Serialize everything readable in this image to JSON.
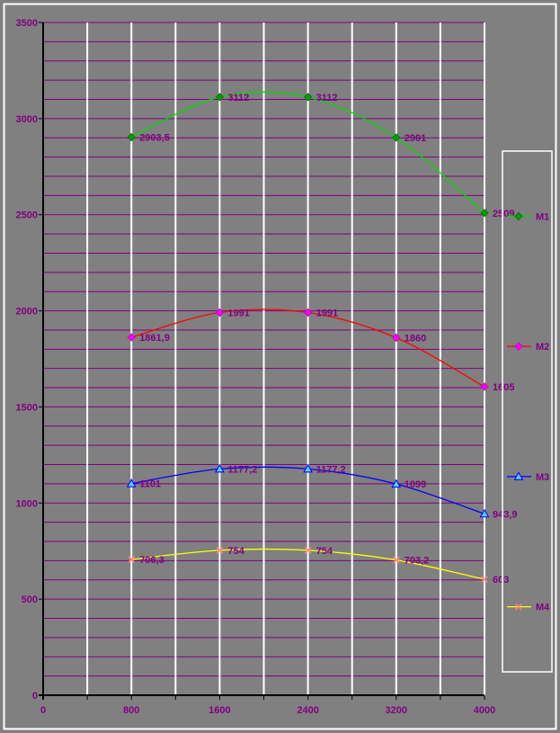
{
  "frame": {
    "background_color": "#808080",
    "border_color": "#FFFFFF"
  },
  "chart_data": {
    "type": "line",
    "smooth": true,
    "title": "",
    "xlabel": "",
    "ylabel": "",
    "xlim": [
      0,
      4000
    ],
    "ylim": [
      0,
      3500
    ],
    "x_tick_values": [
      0,
      800,
      1600,
      2400,
      3200,
      4000
    ],
    "x_tick_labels": [
      "0",
      "800",
      "1600",
      "2400",
      "3200",
      "4000"
    ],
    "y_tick_values": [
      0,
      500,
      1000,
      1500,
      2000,
      2500,
      3000,
      3500
    ],
    "y_tick_labels": [
      "0",
      "500",
      "1000",
      "1500",
      "2000",
      "2500",
      "3000",
      "3500"
    ],
    "x_minor_step": 400,
    "y_minor_step": 100,
    "grid": "on",
    "x": [
      800,
      1600,
      2400,
      3200,
      4000
    ],
    "series": [
      {
        "name": "M1",
        "values": [
          2903.5,
          3112,
          3112,
          2901,
          2509
        ],
        "point_labels": [
          "2903,5",
          "3112",
          "3112",
          "2901",
          "2509"
        ],
        "line_color": "#00DD00",
        "marker": "diamond",
        "marker_fill": "#00A000",
        "marker_stroke": "#007700"
      },
      {
        "name": "M2",
        "values": [
          1861.9,
          1991,
          1991,
          1860,
          1605
        ],
        "point_labels": [
          "1861,9",
          "1991",
          "1991",
          "1860",
          "1605"
        ],
        "line_color": "#FF0000",
        "marker": "diamond",
        "marker_fill": "#FF00FF",
        "marker_stroke": "#CC00CC"
      },
      {
        "name": "M3",
        "values": [
          1101,
          1177.2,
          1177.2,
          1099,
          943.9
        ],
        "point_labels": [
          "1101",
          "1177,2",
          "1177,2",
          "1099",
          "943,9"
        ],
        "line_color": "#0000FF",
        "marker": "triangle",
        "marker_fill": "#55CCFF",
        "marker_stroke": "#0000FF"
      },
      {
        "name": "M4",
        "values": [
          706.3,
          754,
          754,
          703.2,
          603
        ],
        "point_labels": [
          "706,3",
          "754",
          "754",
          "703,2",
          "603"
        ],
        "line_color": "#FFFF00",
        "marker": "x",
        "marker_fill": "#FF8080",
        "marker_stroke": "#FF8080"
      }
    ],
    "legend": {
      "position": "right",
      "items": [
        "M1",
        "M2",
        "M3",
        "M4"
      ]
    },
    "colors": {
      "h_gridline": "#800080",
      "v_gridline": "#FFFFFF",
      "axis": "#000000",
      "tick_label": "#800080",
      "data_label": "#800080",
      "legend_label": "#800080",
      "legend_border": "#FFFFFF",
      "plot_background": "#808080"
    }
  }
}
